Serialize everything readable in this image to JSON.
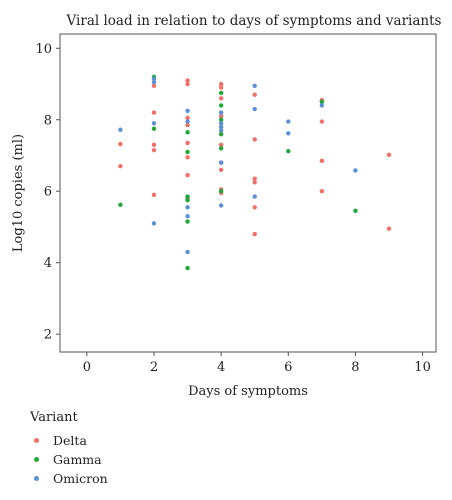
{
  "chart_data": {
    "type": "scatter",
    "title": "Viral load in relation to days of symptoms and variants",
    "xlabel": "Days of symptoms",
    "ylabel": "Log10 copies (ml)",
    "xlim": [
      -0.8,
      10.4
    ],
    "ylim": [
      1.5,
      10.4
    ],
    "xticks": [
      0,
      2,
      4,
      6,
      8,
      10
    ],
    "yticks": [
      2,
      4,
      6,
      8,
      10
    ],
    "grid": false,
    "legend_position": "below",
    "legend_title": "Variant",
    "series": [
      {
        "name": "Delta",
        "color": "#f07068",
        "points": [
          [
            1,
            7.32
          ],
          [
            1,
            6.7
          ],
          [
            2,
            8.95
          ],
          [
            2,
            8.2
          ],
          [
            2,
            7.3
          ],
          [
            2,
            7.15
          ],
          [
            2,
            5.9
          ],
          [
            3,
            9.1
          ],
          [
            3,
            9.0
          ],
          [
            3,
            8.05
          ],
          [
            3,
            7.85
          ],
          [
            3,
            7.35
          ],
          [
            3,
            6.95
          ],
          [
            3,
            6.45
          ],
          [
            3,
            5.8
          ],
          [
            4,
            9.0
          ],
          [
            4,
            8.9
          ],
          [
            4,
            8.6
          ],
          [
            4,
            8.1
          ],
          [
            4,
            7.6
          ],
          [
            4,
            7.3
          ],
          [
            4,
            6.8
          ],
          [
            4,
            6.6
          ],
          [
            4,
            6.05
          ],
          [
            4,
            5.95
          ],
          [
            5,
            8.7
          ],
          [
            5,
            7.45
          ],
          [
            5,
            6.35
          ],
          [
            5,
            6.25
          ],
          [
            5,
            5.55
          ],
          [
            5,
            4.8
          ],
          [
            7,
            8.55
          ],
          [
            7,
            7.95
          ],
          [
            7,
            6.85
          ],
          [
            7,
            6.0
          ],
          [
            9,
            7.02
          ],
          [
            9,
            4.95
          ]
        ]
      },
      {
        "name": "Gamma",
        "color": "#1fa83a",
        "points": [
          [
            1,
            5.62
          ],
          [
            2,
            9.2
          ],
          [
            2,
            7.75
          ],
          [
            3,
            7.65
          ],
          [
            3,
            7.1
          ],
          [
            3,
            5.85
          ],
          [
            3,
            5.75
          ],
          [
            3,
            5.15
          ],
          [
            3,
            3.85
          ],
          [
            4,
            8.75
          ],
          [
            4,
            8.4
          ],
          [
            4,
            8.0
          ],
          [
            4,
            7.6
          ],
          [
            4,
            7.2
          ],
          [
            4,
            6.0
          ],
          [
            6,
            7.12
          ],
          [
            7,
            8.5
          ],
          [
            8,
            5.45
          ]
        ]
      },
      {
        "name": "Omicron",
        "color": "#5b8fd6",
        "points": [
          [
            1,
            7.72
          ],
          [
            2,
            9.15
          ],
          [
            2,
            9.05
          ],
          [
            2,
            7.9
          ],
          [
            2,
            5.1
          ],
          [
            3,
            8.25
          ],
          [
            3,
            7.95
          ],
          [
            3,
            5.55
          ],
          [
            3,
            5.3
          ],
          [
            3,
            4.3
          ],
          [
            4,
            8.2
          ],
          [
            4,
            7.9
          ],
          [
            4,
            7.8
          ],
          [
            4,
            7.7
          ],
          [
            4,
            6.8
          ],
          [
            4,
            5.6
          ],
          [
            5,
            8.95
          ],
          [
            5,
            8.3
          ],
          [
            5,
            5.85
          ],
          [
            6,
            7.95
          ],
          [
            6,
            7.62
          ],
          [
            7,
            8.4
          ],
          [
            8,
            6.58
          ]
        ]
      }
    ]
  }
}
